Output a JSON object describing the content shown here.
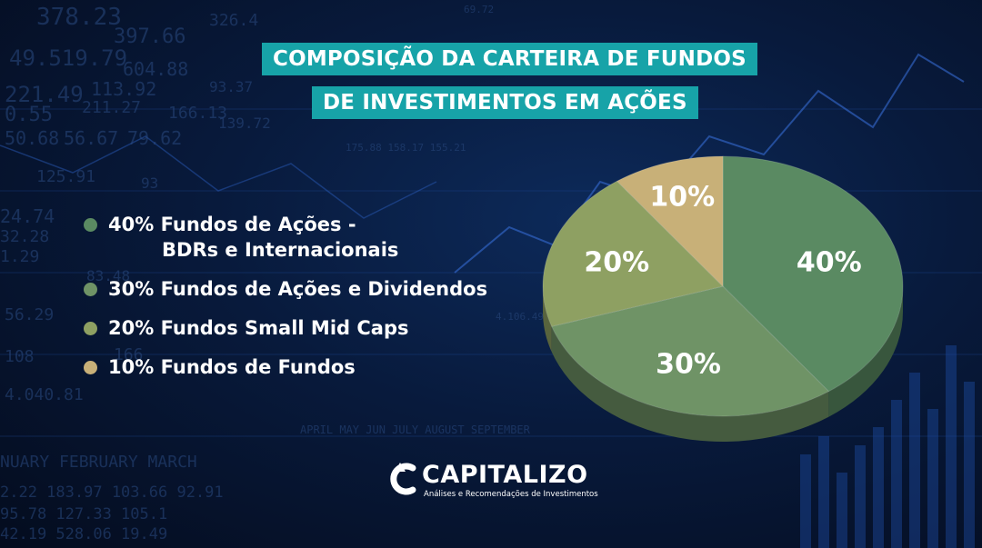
{
  "title": {
    "line1": "COMPOSIÇÃO DA CARTEIRA DE FUNDOS",
    "line2": "DE INVESTIMENTOS EM AÇÕES"
  },
  "legend": [
    {
      "line1": "40% Fundos de Ações -",
      "line2": "BDRs e Internacionais",
      "color": "#5a8a62"
    },
    {
      "line1": "30% Fundos de Ações e Dividendos",
      "line2": "",
      "color": "#6f9366"
    },
    {
      "line1": "20% Fundos Small Mid Caps",
      "line2": "",
      "color": "#8ea062"
    },
    {
      "line1": "10% Fundos de Fundos",
      "line2": "",
      "color": "#c8b078"
    }
  ],
  "chart_data": {
    "type": "pie",
    "categories": [
      "Fundos de Ações - BDRs e Internacionais",
      "Fundos de Ações e Dividendos",
      "Fundos Small Mid Caps",
      "Fundos de Fundos"
    ],
    "values": [
      40,
      30,
      20,
      10
    ],
    "labels": [
      "40%",
      "30%",
      "20%",
      "10%"
    ],
    "colors": [
      "#5a8a62",
      "#6f9366",
      "#8ea062",
      "#c8b078"
    ],
    "style": "3d"
  },
  "logo": {
    "name": "CAPITALIZO",
    "tagline": "Análises e Recomendações de Investimentos"
  },
  "background_numbers": [
    "378.23",
    "397.66",
    "326.4",
    "49.519.79",
    "604.88",
    "221.49",
    "113.92",
    "0.55",
    "211.27",
    "166.13",
    "50.68",
    "56.67",
    "79.62",
    "125.91",
    "24.74",
    "32.28",
    "1.29",
    "56.29",
    "108",
    "166",
    "4.040.81",
    "93",
    "NUARY FEBRUARY MARCH",
    "APRIL MAY JUN JULY AUGUST SEPTEMBER",
    "2.22 183.97 103.66 92.91",
    "95.78 127.33 105.1",
    "42.19 528.06 19.49",
    "69.72",
    "4.106.49",
    "175.88 158.17 155.21",
    "83.48",
    "93.37",
    "139.72"
  ]
}
